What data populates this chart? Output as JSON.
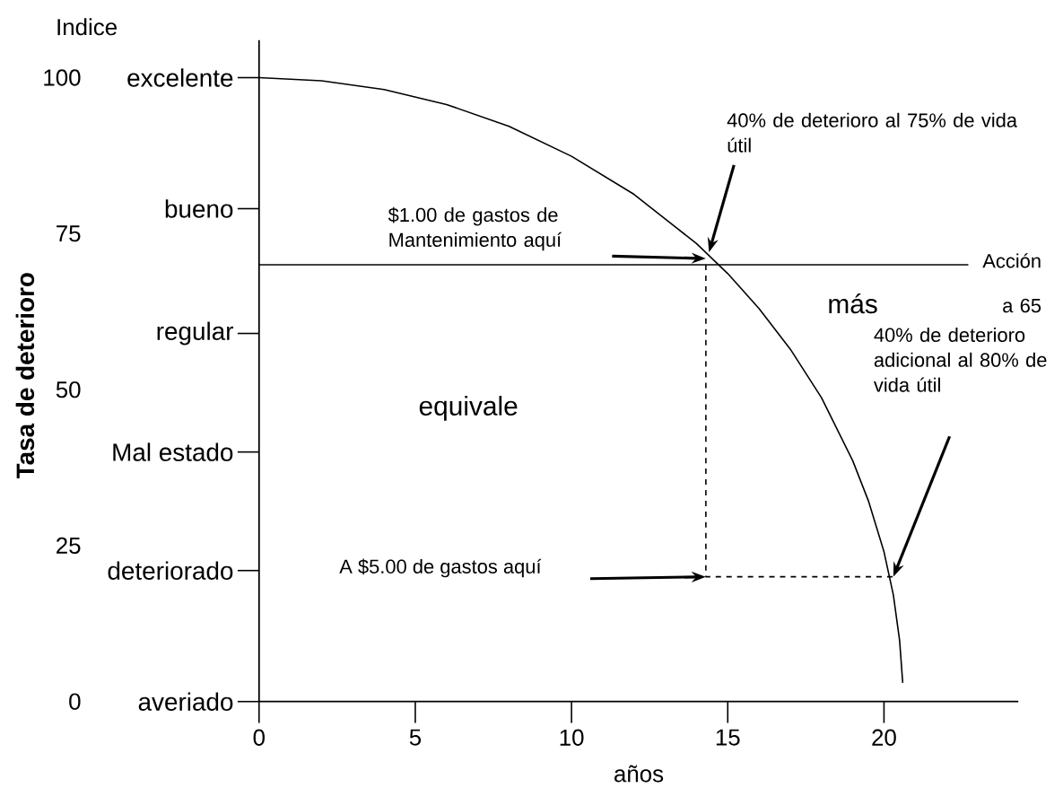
{
  "chart_data": {
    "type": "line",
    "xlabel": "años",
    "ylabel": "Tasa de deterioro",
    "y2label": "Indice",
    "xlim": [
      0,
      24.3
    ],
    "xticks": [
      0,
      5,
      10,
      15,
      20
    ],
    "ylim": [
      0,
      106
    ],
    "yticks": [
      0,
      25,
      50,
      75,
      100
    ],
    "series": [
      {
        "color": "#000000",
        "x": [
          0,
          2,
          4,
          6,
          8,
          10,
          12,
          14,
          15,
          16,
          17,
          18,
          19,
          19.5,
          20,
          20.3,
          20.5,
          20.6
        ],
        "values": [
          100,
          99.5,
          98.1,
          95.7,
          92.2,
          87.4,
          81.3,
          73.4,
          68.6,
          63.0,
          56.5,
          48.7,
          38.6,
          32.2,
          24.0,
          17.1,
          9.8,
          3
        ]
      },
      {
        "color": "#000000",
        "line_style": "dashed",
        "x": [
          14.3,
          14.3,
          20.3
        ],
        "values": [
          70,
          20,
          20
        ]
      }
    ],
    "ref_lines": [
      {
        "axis": "y",
        "value": 70,
        "label": "Acción a 65"
      }
    ],
    "annotations": [
      "40% de deterioro al 75% de vida útil",
      "$1.00 de gastos de Mantenimiento aquí",
      "A $5.00 de gastos aquí",
      "40% de deterioro adicional al 80% de vida útil",
      "más",
      "equivale",
      "excelente",
      "bueno",
      "regular",
      "Mal estado",
      "deteriorado",
      "averiado"
    ]
  }
}
